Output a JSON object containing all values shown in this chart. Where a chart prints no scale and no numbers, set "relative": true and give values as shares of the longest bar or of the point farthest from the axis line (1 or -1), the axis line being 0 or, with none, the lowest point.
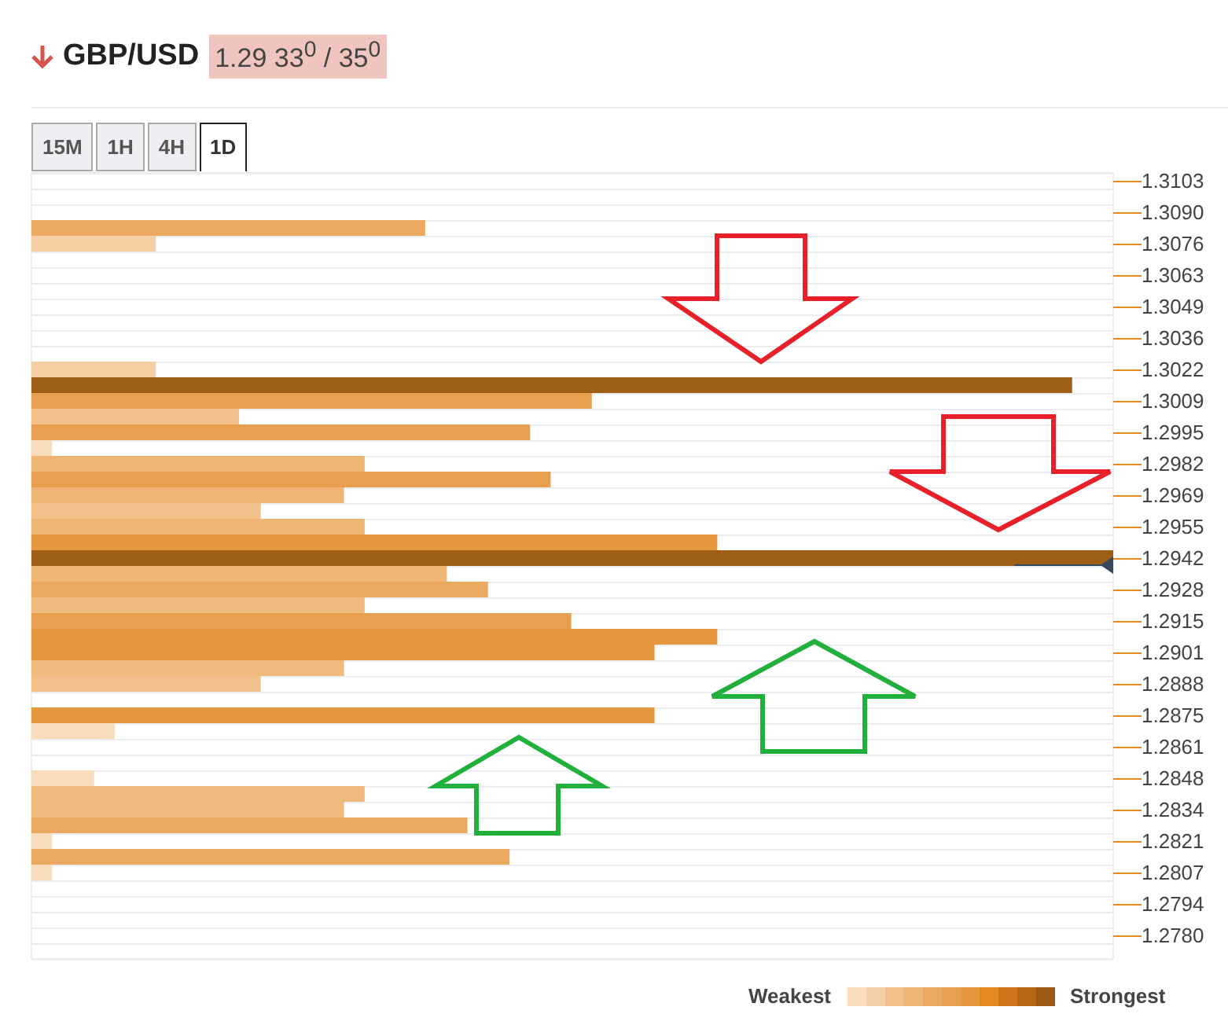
{
  "chart_data": {
    "type": "bar",
    "orientation": "horizontal",
    "relative": true,
    "title": "GBP/USD",
    "subtitle": "1.29 33$^{0}$ / 35$^{0}$",
    "categories": [
      "1.3103",
      null,
      "1.3090",
      null,
      "1.3076",
      null,
      "1.3063",
      null,
      "1.3049",
      null,
      "1.3036",
      null,
      "1.3022",
      null,
      "1.3009",
      null,
      "1.2995",
      null,
      "1.2982",
      null,
      "1.2969",
      null,
      "1.2955",
      null,
      "1.2942",
      null,
      "1.2928",
      null,
      "1.2915",
      null,
      "1.2901",
      null,
      "1.2888",
      null,
      "1.2875",
      null,
      "1.2861",
      null,
      "1.2848",
      null,
      "1.2834",
      null,
      "1.2821",
      null,
      "1.2807",
      null,
      "1.2794",
      null,
      "1.2780",
      null
    ],
    "values": [
      null,
      null,
      null,
      0.364,
      0.115,
      null,
      null,
      null,
      null,
      null,
      null,
      null,
      0.115,
      0.962,
      0.518,
      0.192,
      0.461,
      0.019,
      0.308,
      0.48,
      0.289,
      0.212,
      0.308,
      0.634,
      1,
      0.384,
      0.422,
      0.308,
      0.499,
      0.634,
      0.576,
      0.289,
      0.212,
      null,
      0.576,
      0.077,
      null,
      null,
      0.058,
      0.308,
      0.289,
      0.403,
      0.019,
      0.442,
      0.019,
      null,
      null,
      null,
      null,
      null
    ],
    "colors": [
      null,
      null,
      null,
      "#ecaa60",
      "#f5cfa3",
      null,
      null,
      null,
      null,
      null,
      null,
      null,
      "#f5cfa3",
      "#9e5e16",
      "#e8a04f",
      "#f1c08b",
      "#e8a04f",
      "#f8dcbc",
      "#eeb574",
      "#e89f4f",
      "#eeb574",
      "#f1c08b",
      "#eeb574",
      "#e6963b",
      "#9e5e16",
      "#eeb574",
      "#eaa95f",
      "#f0ba7c",
      "#e89f4f",
      "#e6963b",
      "#e6963b",
      "#f0ba7c",
      "#f1c08b",
      null,
      "#e6963b",
      "#f8dcbc",
      null,
      null,
      "#f8dcbc",
      "#f0ba7c",
      "#f0ba7c",
      "#eaa95f",
      "#f8dcbc",
      "#eaa95f",
      "#f8dcbc",
      null,
      null,
      null,
      null,
      null
    ],
    "grid": true,
    "annotations": [
      "15M",
      "1H",
      "4H",
      "1D",
      "Weakest",
      "Strongest"
    ]
  }
}
